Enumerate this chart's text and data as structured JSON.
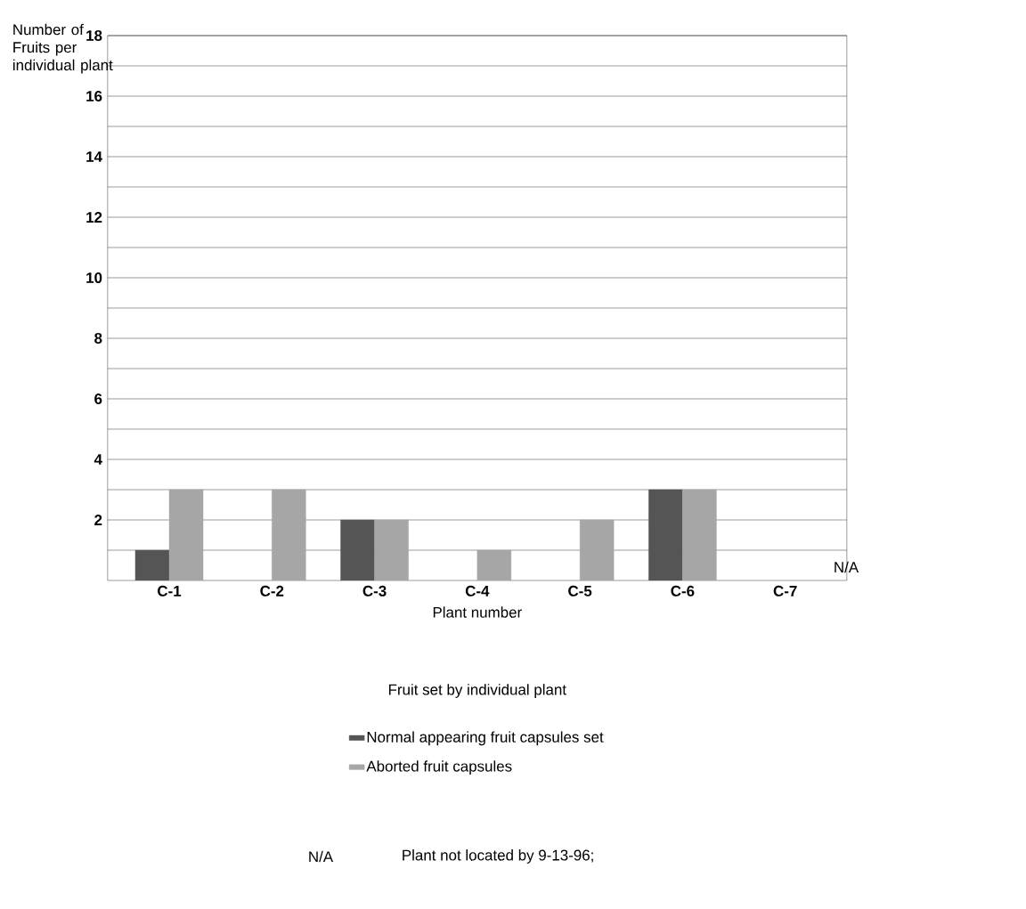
{
  "chart_data": {
    "type": "bar",
    "title": "Fruit set by individual plant",
    "xlabel": "Plant number",
    "ylabel": "Number of Fruits per individual plant",
    "categories": [
      "C-1",
      "C-2",
      "C-3",
      "C-4",
      "C-5",
      "C-6",
      "C-7"
    ],
    "series": [
      {
        "name": "Normal appearing fruit capsules set",
        "color": "#555555",
        "values": [
          1,
          null,
          2,
          null,
          null,
          3,
          null
        ]
      },
      {
        "name": "Aborted fruit capsules",
        "color": "#a6a6a6",
        "values": [
          3,
          3,
          2,
          1,
          2,
          3,
          null
        ]
      }
    ],
    "ylim": [
      0,
      18
    ],
    "yticks": [
      {
        "value": 1,
        "label": null
      },
      2,
      {
        "value": 3,
        "label": null
      },
      4,
      {
        "value": 5,
        "label": null
      },
      6,
      {
        "value": 7,
        "label": null
      },
      8,
      {
        "value": 9,
        "label": null
      },
      10,
      {
        "value": 11,
        "label": null
      },
      12,
      {
        "value": 13,
        "label": null
      },
      14,
      {
        "value": 15,
        "label": null
      },
      16,
      {
        "value": 17,
        "label": null
      },
      18
    ],
    "grid": "y",
    "legend": "bottom",
    "annotations": [
      "N/A",
      "N/A",
      "Plant not located by 9-13-96;"
    ]
  }
}
